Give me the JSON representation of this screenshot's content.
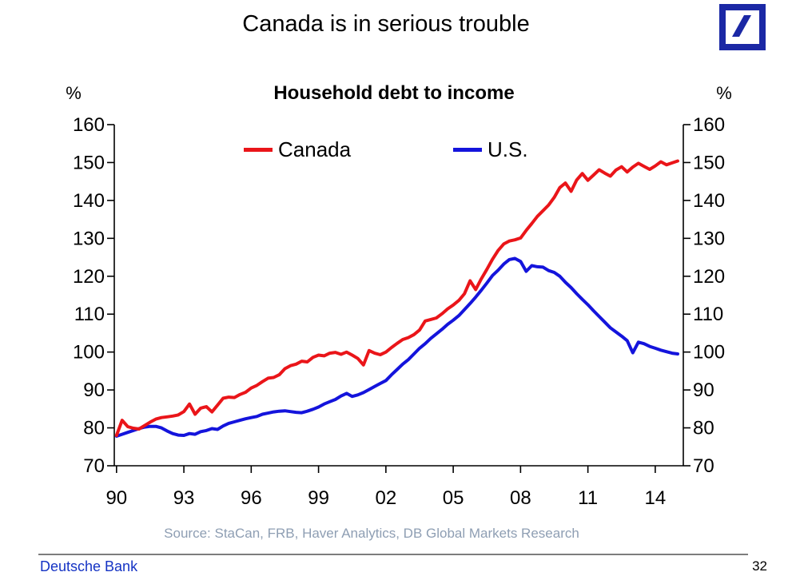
{
  "slide": {
    "title": "Canada is in serious trouble",
    "source": "Source: StaCan, FRB, Haver Analytics, DB Global Markets Research",
    "source_color": "#8E9EB3",
    "footer_brand": "Deutsche Bank",
    "footer_brand_color": "#1533C4",
    "page_number": "32"
  },
  "logo": {
    "name": "deutsche-bank-logo",
    "color": "#1B28A5"
  },
  "chart_data": {
    "type": "line",
    "title": "Household debt to income",
    "percent_label": "%",
    "xlabel": "",
    "ylabel": "%",
    "grid": false,
    "legend_position": "top-inside",
    "xlim": [
      1989.9,
      2015.25
    ],
    "ylim": [
      70,
      160
    ],
    "y_ticks": [
      70,
      80,
      90,
      100,
      110,
      120,
      130,
      140,
      150,
      160
    ],
    "x_ticks": [
      {
        "year": 1990,
        "label": "90"
      },
      {
        "year": 1993,
        "label": "93"
      },
      {
        "year": 1996,
        "label": "96"
      },
      {
        "year": 1999,
        "label": "99"
      },
      {
        "year": 2002,
        "label": "02"
      },
      {
        "year": 2005,
        "label": "05"
      },
      {
        "year": 2008,
        "label": "08"
      },
      {
        "year": 2011,
        "label": "11"
      },
      {
        "year": 2014,
        "label": "14"
      }
    ],
    "series": [
      {
        "name": "Canada",
        "color": "#EA1519",
        "points": [
          [
            1990,
            78
          ],
          [
            1990.25,
            82
          ],
          [
            1990.5,
            80.3
          ],
          [
            1990.75,
            79.9
          ],
          [
            1991,
            79.7
          ],
          [
            1991.25,
            80.6
          ],
          [
            1991.5,
            81.5
          ],
          [
            1991.75,
            82.3
          ],
          [
            1992,
            82.7
          ],
          [
            1992.25,
            82.9
          ],
          [
            1992.5,
            83.1
          ],
          [
            1992.75,
            83.4
          ],
          [
            1993,
            84.3
          ],
          [
            1993.25,
            86.3
          ],
          [
            1993.5,
            83.6
          ],
          [
            1993.75,
            85.2
          ],
          [
            1994,
            85.6
          ],
          [
            1994.25,
            84.2
          ],
          [
            1994.5,
            86
          ],
          [
            1994.75,
            87.8
          ],
          [
            1995,
            88.1
          ],
          [
            1995.25,
            88
          ],
          [
            1995.5,
            88.8
          ],
          [
            1995.75,
            89.4
          ],
          [
            1996,
            90.5
          ],
          [
            1996.25,
            91.2
          ],
          [
            1996.5,
            92.2
          ],
          [
            1996.75,
            93.1
          ],
          [
            1997,
            93.3
          ],
          [
            1997.25,
            94
          ],
          [
            1997.5,
            95.6
          ],
          [
            1997.75,
            96.4
          ],
          [
            1998,
            96.8
          ],
          [
            1998.25,
            97.6
          ],
          [
            1998.5,
            97.4
          ],
          [
            1998.75,
            98.6
          ],
          [
            1999,
            99.2
          ],
          [
            1999.25,
            99
          ],
          [
            1999.5,
            99.7
          ],
          [
            1999.75,
            99.9
          ],
          [
            2000,
            99.4
          ],
          [
            2000.25,
            100
          ],
          [
            2000.5,
            99.2
          ],
          [
            2000.75,
            98.3
          ],
          [
            2001,
            96.6
          ],
          [
            2001.25,
            100.4
          ],
          [
            2001.5,
            99.7
          ],
          [
            2001.75,
            99.3
          ],
          [
            2002,
            100
          ],
          [
            2002.25,
            101.2
          ],
          [
            2002.5,
            102.3
          ],
          [
            2002.75,
            103.3
          ],
          [
            2003,
            103.8
          ],
          [
            2003.25,
            104.6
          ],
          [
            2003.5,
            105.8
          ],
          [
            2003.75,
            108.2
          ],
          [
            2004,
            108.6
          ],
          [
            2004.25,
            109
          ],
          [
            2004.5,
            110.1
          ],
          [
            2004.75,
            111.4
          ],
          [
            2005,
            112.4
          ],
          [
            2005.25,
            113.6
          ],
          [
            2005.5,
            115.4
          ],
          [
            2005.75,
            118.8
          ],
          [
            2006,
            116.5
          ],
          [
            2006.25,
            119.3
          ],
          [
            2006.5,
            121.8
          ],
          [
            2006.75,
            124.5
          ],
          [
            2007,
            126.8
          ],
          [
            2007.25,
            128.5
          ],
          [
            2007.5,
            129.3
          ],
          [
            2007.75,
            129.6
          ],
          [
            2008,
            130.1
          ],
          [
            2008.25,
            132.1
          ],
          [
            2008.5,
            133.9
          ],
          [
            2008.75,
            135.8
          ],
          [
            2009,
            137.3
          ],
          [
            2009.25,
            138.8
          ],
          [
            2009.5,
            140.8
          ],
          [
            2009.75,
            143.4
          ],
          [
            2010,
            144.6
          ],
          [
            2010.25,
            142.4
          ],
          [
            2010.5,
            145.4
          ],
          [
            2010.75,
            147.1
          ],
          [
            2011,
            145.3
          ],
          [
            2011.25,
            146.7
          ],
          [
            2011.5,
            148.1
          ],
          [
            2011.75,
            147.2
          ],
          [
            2012,
            146.4
          ],
          [
            2012.25,
            148
          ],
          [
            2012.5,
            148.9
          ],
          [
            2012.75,
            147.5
          ],
          [
            2013,
            148.8
          ],
          [
            2013.25,
            149.8
          ],
          [
            2013.5,
            149
          ],
          [
            2013.75,
            148.2
          ],
          [
            2014,
            149.1
          ],
          [
            2014.25,
            150.2
          ],
          [
            2014.5,
            149.4
          ],
          [
            2014.75,
            149.9
          ],
          [
            2015,
            150.4
          ]
        ]
      },
      {
        "name": "U.S.",
        "color": "#1414DC",
        "points": [
          [
            1990,
            77.8
          ],
          [
            1990.25,
            78.3
          ],
          [
            1990.5,
            78.8
          ],
          [
            1990.75,
            79.3
          ],
          [
            1991,
            79.8
          ],
          [
            1991.25,
            80.2
          ],
          [
            1991.5,
            80.4
          ],
          [
            1991.75,
            80.4
          ],
          [
            1992,
            80
          ],
          [
            1992.25,
            79.2
          ],
          [
            1992.5,
            78.5
          ],
          [
            1992.75,
            78.1
          ],
          [
            1993,
            78
          ],
          [
            1993.25,
            78.5
          ],
          [
            1993.5,
            78.3
          ],
          [
            1993.75,
            79
          ],
          [
            1994,
            79.3
          ],
          [
            1994.25,
            79.8
          ],
          [
            1994.5,
            79.6
          ],
          [
            1994.75,
            80.5
          ],
          [
            1995,
            81.2
          ],
          [
            1995.25,
            81.6
          ],
          [
            1995.5,
            82
          ],
          [
            1995.75,
            82.4
          ],
          [
            1996,
            82.7
          ],
          [
            1996.25,
            83
          ],
          [
            1996.5,
            83.6
          ],
          [
            1996.75,
            83.9
          ],
          [
            1997,
            84.2
          ],
          [
            1997.25,
            84.4
          ],
          [
            1997.5,
            84.5
          ],
          [
            1997.75,
            84.3
          ],
          [
            1998,
            84.1
          ],
          [
            1998.25,
            84
          ],
          [
            1998.5,
            84.4
          ],
          [
            1998.75,
            84.9
          ],
          [
            1999,
            85.5
          ],
          [
            1999.25,
            86.3
          ],
          [
            1999.5,
            86.9
          ],
          [
            1999.75,
            87.5
          ],
          [
            2000,
            88.4
          ],
          [
            2000.25,
            89.1
          ],
          [
            2000.5,
            88.3
          ],
          [
            2000.75,
            88.7
          ],
          [
            2001,
            89.3
          ],
          [
            2001.25,
            90.1
          ],
          [
            2001.5,
            90.9
          ],
          [
            2001.75,
            91.7
          ],
          [
            2002,
            92.5
          ],
          [
            2002.25,
            94
          ],
          [
            2002.5,
            95.4
          ],
          [
            2002.75,
            96.8
          ],
          [
            2003,
            98
          ],
          [
            2003.25,
            99.5
          ],
          [
            2003.5,
            101
          ],
          [
            2003.75,
            102.2
          ],
          [
            2004,
            103.6
          ],
          [
            2004.25,
            104.8
          ],
          [
            2004.5,
            106
          ],
          [
            2004.75,
            107.3
          ],
          [
            2005,
            108.4
          ],
          [
            2005.25,
            109.6
          ],
          [
            2005.5,
            111.2
          ],
          [
            2005.75,
            112.8
          ],
          [
            2006,
            114.5
          ],
          [
            2006.25,
            116.3
          ],
          [
            2006.5,
            118.2
          ],
          [
            2006.75,
            120.2
          ],
          [
            2007,
            121.6
          ],
          [
            2007.25,
            123.2
          ],
          [
            2007.5,
            124.4
          ],
          [
            2007.75,
            124.7
          ],
          [
            2008,
            123.9
          ],
          [
            2008.25,
            121.3
          ],
          [
            2008.5,
            122.8
          ],
          [
            2008.75,
            122.5
          ],
          [
            2009,
            122.4
          ],
          [
            2009.25,
            121.5
          ],
          [
            2009.5,
            121
          ],
          [
            2009.75,
            120
          ],
          [
            2010,
            118.4
          ],
          [
            2010.25,
            117
          ],
          [
            2010.5,
            115.4
          ],
          [
            2010.75,
            113.9
          ],
          [
            2011,
            112.5
          ],
          [
            2011.25,
            110.9
          ],
          [
            2011.5,
            109.4
          ],
          [
            2011.75,
            107.9
          ],
          [
            2012,
            106.4
          ],
          [
            2012.25,
            105.3
          ],
          [
            2012.5,
            104.2
          ],
          [
            2012.75,
            103
          ],
          [
            2013,
            99.8
          ],
          [
            2013.25,
            102.6
          ],
          [
            2013.5,
            102.2
          ],
          [
            2013.75,
            101.5
          ],
          [
            2014,
            101
          ],
          [
            2014.25,
            100.5
          ],
          [
            2014.5,
            100.1
          ],
          [
            2014.75,
            99.7
          ],
          [
            2015,
            99.5
          ]
        ]
      }
    ]
  }
}
